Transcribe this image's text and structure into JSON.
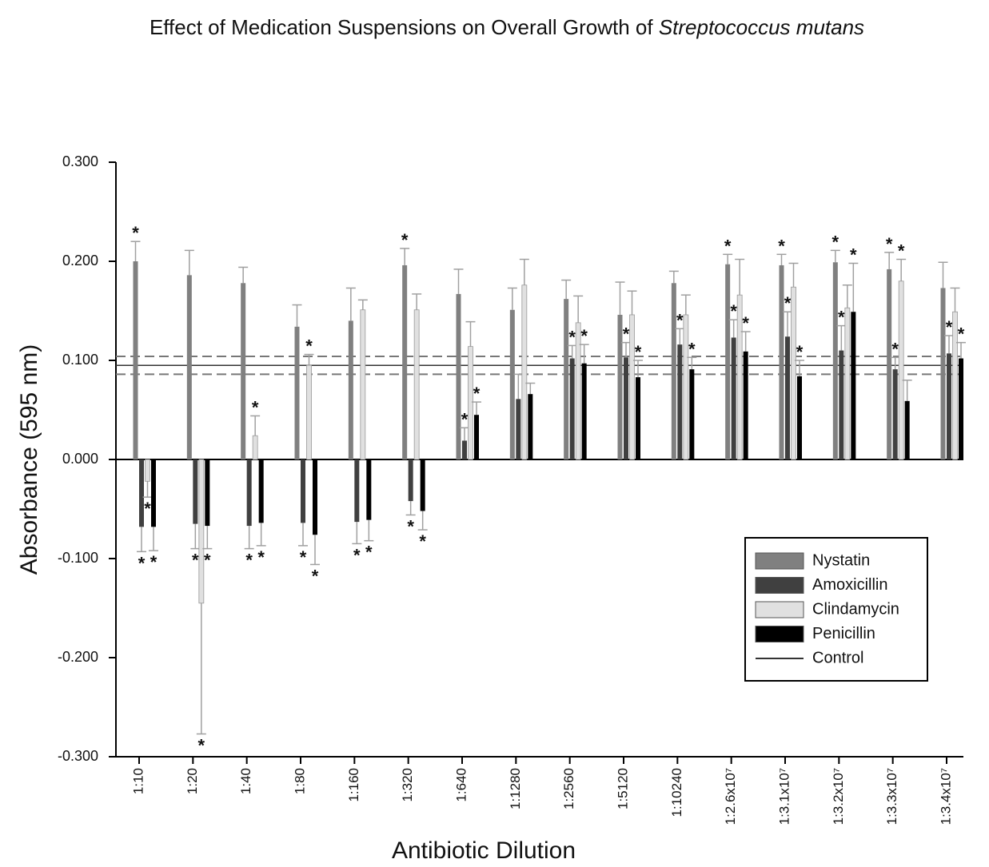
{
  "chart_data": {
    "type": "bar",
    "title": "Effect of Medication Suspensions on Overall Growth of ",
    "title_species": "Streptococcus mutans",
    "x_label": "Antibiotic Dilution",
    "y_label": "Absorbance (595 nm)",
    "categories": [
      "1:10",
      "1:20",
      "1:40",
      "1:80",
      "1:160",
      "1:320",
      "1:640",
      "1:1280",
      "1:2560",
      "1:5120",
      "1:10240",
      "1:2.6x10⁷",
      "1:3.1x10⁷",
      "1:3.2x10⁷",
      "1:3.3x10⁷",
      "1:3.4x10⁷"
    ],
    "ylim": [
      -0.3,
      0.3
    ],
    "yticks": [
      {
        "value": -0.3,
        "label": "-0.300"
      },
      {
        "value": -0.2,
        "label": "-0.200"
      },
      {
        "value": -0.1,
        "label": "-0.100"
      },
      {
        "value": 0,
        "label": "0.000"
      },
      {
        "value": 0.1,
        "label": "0.100"
      },
      {
        "value": 0.2,
        "label": "0.200"
      },
      {
        "value": 0.3,
        "label": "0.300"
      }
    ],
    "significance_marker": "*",
    "error_bar_color": "#a0a0a0",
    "legend": "lower right",
    "series": [
      {
        "name": "Nystatin",
        "color": "#808080",
        "values": [
          0.2,
          0.186,
          0.178,
          0.134,
          0.14,
          0.196,
          0.167,
          0.151,
          0.162,
          0.146,
          0.178,
          0.197,
          0.196,
          0.199,
          0.192,
          0.173
        ],
        "errors": [
          0.02,
          0.025,
          0.016,
          0.022,
          0.033,
          0.017,
          0.025,
          0.022,
          0.019,
          0.033,
          0.012,
          0.01,
          0.011,
          0.012,
          0.017,
          0.026
        ],
        "significant": [
          true,
          false,
          false,
          false,
          false,
          true,
          false,
          false,
          false,
          false,
          false,
          true,
          true,
          true,
          true,
          false
        ]
      },
      {
        "name": "Amoxicillin",
        "color": "#404040",
        "values": [
          -0.068,
          -0.065,
          -0.067,
          -0.064,
          -0.063,
          -0.042,
          0.019,
          0.061,
          0.102,
          0.103,
          0.116,
          0.123,
          0.124,
          0.11,
          0.091,
          0.107
        ],
        "errors": [
          0.025,
          0.025,
          0.023,
          0.023,
          0.022,
          0.014,
          0.013,
          0.025,
          0.013,
          0.015,
          0.016,
          0.018,
          0.025,
          0.025,
          0.012,
          0.018
        ],
        "significant": [
          true,
          true,
          true,
          true,
          true,
          true,
          true,
          false,
          true,
          true,
          true,
          true,
          true,
          true,
          true,
          true
        ]
      },
      {
        "name": "Clindamycin",
        "color": "#e0e0e0",
        "values": [
          -0.022,
          -0.145,
          0.024,
          0.095,
          0.151,
          0.151,
          0.114,
          0.176,
          0.138,
          0.146,
          0.146,
          0.166,
          0.174,
          0.153,
          0.18,
          0.149
        ],
        "errors": [
          0.016,
          0.132,
          0.02,
          0.011,
          0.01,
          0.016,
          0.025,
          0.026,
          0.027,
          0.024,
          0.02,
          0.036,
          0.024,
          0.023,
          0.022,
          0.024
        ],
        "significant": [
          true,
          true,
          true,
          true,
          false,
          false,
          false,
          false,
          false,
          false,
          false,
          false,
          false,
          false,
          true,
          false
        ]
      },
      {
        "name": "Penicillin",
        "color": "#000000",
        "values": [
          -0.068,
          -0.067,
          -0.064,
          -0.076,
          -0.061,
          -0.052,
          0.045,
          0.066,
          0.097,
          0.083,
          0.091,
          0.109,
          0.084,
          0.149,
          0.059,
          0.102
        ],
        "errors": [
          0.024,
          0.023,
          0.023,
          0.03,
          0.021,
          0.019,
          0.013,
          0.011,
          0.019,
          0.017,
          0.012,
          0.02,
          0.016,
          0.049,
          0.021,
          0.016
        ],
        "significant": [
          true,
          true,
          true,
          true,
          true,
          true,
          true,
          false,
          true,
          true,
          true,
          true,
          true,
          true,
          false,
          true
        ]
      }
    ],
    "control": {
      "name": "Control",
      "value": 0.095,
      "error": 0.009,
      "color": "#333333"
    }
  }
}
